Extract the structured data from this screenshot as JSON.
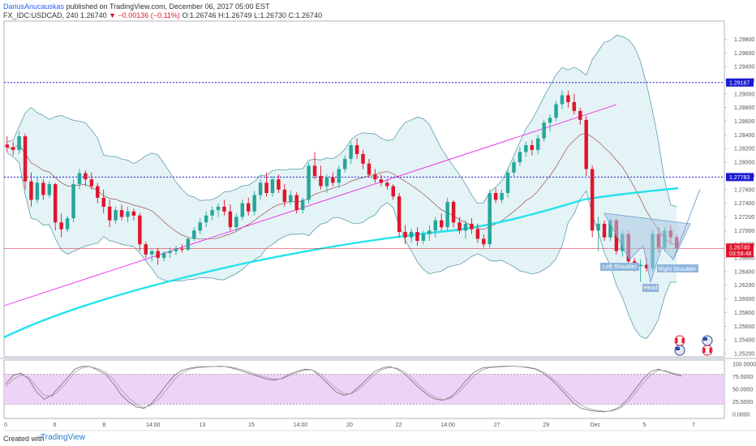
{
  "header": {
    "author": "DariusAnucauskas",
    "published": "published on TradingView.com, December 06, 2017 05:00 EST",
    "symbol": "FX_IDC:USDCAD, 240",
    "last": "1.26740",
    "change": "▼ −0.00136 (−0.11%)",
    "ohlc": "O:1.26746 H:1.26749 L:1.26730 C:1.26740"
  },
  "footer": {
    "created_with": "Created with",
    "brand": "TradingView"
  },
  "colors": {
    "bullish": "#26a69a",
    "bearish": "#e0152d",
    "bands": "#5e9dab",
    "band_fill": "#d9eef1",
    "ema": "#21e3ec",
    "trendline": "#ee22ee",
    "hline": "#1a1ad0",
    "basis": "#8b3a3a",
    "stoch_fill": "#e9c8f2",
    "pattern_fill": "#a9c7e4"
  },
  "chart_data": [
    {
      "type": "candlestick",
      "ylim": [
        1.25,
        1.3
      ],
      "y_ticks": [
        "1.29800",
        "1.29600",
        "1.29400",
        "1.29200",
        "1.29000",
        "1.28800",
        "1.28600",
        "1.28400",
        "1.28200",
        "1.28000",
        "1.27800",
        "1.27600",
        "1.27400",
        "1.27200",
        "1.27000",
        "1.26800",
        "1.26600",
        "1.26400",
        "1.26200",
        "1.26000",
        "1.25800",
        "1.25600",
        "1.25400",
        "1.25200"
      ],
      "x_ticks": [
        "0",
        "6",
        "8",
        "14:00",
        "13",
        "15",
        "14:00",
        "20",
        "22",
        "14:00",
        "27",
        "29",
        "Dec",
        "5",
        "7"
      ],
      "price_lines": [
        {
          "label": "1.29167",
          "value": 1.29167
        },
        {
          "label": "1.27783",
          "value": 1.27783
        }
      ],
      "current": {
        "label": "1.26740",
        "value": 1.2674,
        "countdown": "03:59:48"
      },
      "annotations": [
        "Left Shoulder",
        "Head",
        "Right Shoulder"
      ],
      "ohlc": [
        [
          1.2826,
          1.2838,
          1.2815,
          1.2822
        ],
        [
          1.2822,
          1.283,
          1.281,
          1.2818
        ],
        [
          1.2818,
          1.2845,
          1.2812,
          1.2838
        ],
        [
          1.2838,
          1.2842,
          1.276,
          1.2772
        ],
        [
          1.2772,
          1.2785,
          1.2735,
          1.2745
        ],
        [
          1.2745,
          1.2778,
          1.274,
          1.277
        ],
        [
          1.277,
          1.2775,
          1.2745,
          1.2752
        ],
        [
          1.2752,
          1.2772,
          1.2748,
          1.2768
        ],
        [
          1.2768,
          1.277,
          1.27,
          1.2712
        ],
        [
          1.2712,
          1.2725,
          1.269,
          1.2702
        ],
        [
          1.2702,
          1.2722,
          1.2698,
          1.2718
        ],
        [
          1.2718,
          1.2775,
          1.2712,
          1.2768
        ],
        [
          1.2768,
          1.279,
          1.276,
          1.2784
        ],
        [
          1.2784,
          1.2788,
          1.2765,
          1.2775
        ],
        [
          1.2775,
          1.2785,
          1.276,
          1.2765
        ],
        [
          1.2765,
          1.277,
          1.274,
          1.2748
        ],
        [
          1.2748,
          1.276,
          1.2725,
          1.2735
        ],
        [
          1.2735,
          1.2745,
          1.2705,
          1.2715
        ],
        [
          1.2715,
          1.2735,
          1.271,
          1.273
        ],
        [
          1.273,
          1.2738,
          1.2715,
          1.272
        ],
        [
          1.272,
          1.2735,
          1.2712,
          1.2728
        ],
        [
          1.2728,
          1.2732,
          1.2715,
          1.2722
        ],
        [
          1.2722,
          1.2726,
          1.267,
          1.268
        ],
        [
          1.268,
          1.2684,
          1.266,
          1.2665
        ],
        [
          1.2665,
          1.2673,
          1.2655,
          1.267
        ],
        [
          1.267,
          1.2675,
          1.265,
          1.266
        ],
        [
          1.266,
          1.267,
          1.2655,
          1.2667
        ],
        [
          1.2667,
          1.2675,
          1.266,
          1.267
        ],
        [
          1.267,
          1.2678,
          1.2664,
          1.2673
        ],
        [
          1.2673,
          1.268,
          1.2668,
          1.2672
        ],
        [
          1.2672,
          1.269,
          1.267,
          1.2688
        ],
        [
          1.2688,
          1.2705,
          1.2685,
          1.27
        ],
        [
          1.27,
          1.2718,
          1.2695,
          1.2712
        ],
        [
          1.2712,
          1.2728,
          1.2705,
          1.2722
        ],
        [
          1.2722,
          1.2735,
          1.2715,
          1.273
        ],
        [
          1.273,
          1.274,
          1.272,
          1.2735
        ],
        [
          1.2735,
          1.2745,
          1.2722,
          1.2728
        ],
        [
          1.2728,
          1.2738,
          1.27,
          1.2705
        ],
        [
          1.2705,
          1.2725,
          1.27,
          1.272
        ],
        [
          1.272,
          1.2745,
          1.2715,
          1.274
        ],
        [
          1.274,
          1.2748,
          1.2722,
          1.2728
        ],
        [
          1.2728,
          1.2758,
          1.2722,
          1.2752
        ],
        [
          1.2752,
          1.2775,
          1.2745,
          1.277
        ],
        [
          1.277,
          1.2785,
          1.275,
          1.2755
        ],
        [
          1.2755,
          1.278,
          1.275,
          1.2775
        ],
        [
          1.2775,
          1.2782,
          1.2755,
          1.276
        ],
        [
          1.276,
          1.2768,
          1.2735,
          1.2742
        ],
        [
          1.2742,
          1.2758,
          1.2738,
          1.2752
        ],
        [
          1.2752,
          1.2756,
          1.2725,
          1.273
        ],
        [
          1.273,
          1.2748,
          1.2725,
          1.2745
        ],
        [
          1.2745,
          1.28,
          1.274,
          1.2795
        ],
        [
          1.2795,
          1.2815,
          1.2775,
          1.278
        ],
        [
          1.278,
          1.2795,
          1.276,
          1.2765
        ],
        [
          1.2765,
          1.2782,
          1.2755,
          1.2778
        ],
        [
          1.2778,
          1.2785,
          1.2765,
          1.277
        ],
        [
          1.277,
          1.2795,
          1.2762,
          1.279
        ],
        [
          1.279,
          1.281,
          1.2785,
          1.2805
        ],
        [
          1.2805,
          1.283,
          1.2798,
          1.2825
        ],
        [
          1.2825,
          1.2835,
          1.2805,
          1.2812
        ],
        [
          1.2812,
          1.2818,
          1.279,
          1.2798
        ],
        [
          1.2798,
          1.2805,
          1.2778,
          1.2782
        ],
        [
          1.2782,
          1.279,
          1.277,
          1.2775
        ],
        [
          1.2775,
          1.2782,
          1.2765,
          1.277
        ],
        [
          1.277,
          1.2775,
          1.276,
          1.2765
        ],
        [
          1.2765,
          1.2768,
          1.2745,
          1.275
        ],
        [
          1.275,
          1.2755,
          1.269,
          1.2698
        ],
        [
          1.2698,
          1.2708,
          1.268,
          1.269
        ],
        [
          1.269,
          1.2703,
          1.2682,
          1.2698
        ],
        [
          1.2698,
          1.2705,
          1.2678,
          1.2685
        ],
        [
          1.2685,
          1.27,
          1.268,
          1.2695
        ],
        [
          1.2695,
          1.2708,
          1.2685,
          1.27
        ],
        [
          1.27,
          1.272,
          1.269,
          1.2715
        ],
        [
          1.2715,
          1.2725,
          1.27,
          1.2705
        ],
        [
          1.2705,
          1.2748,
          1.27,
          1.2742
        ],
        [
          1.2742,
          1.2745,
          1.2705,
          1.2712
        ],
        [
          1.2712,
          1.272,
          1.2695,
          1.27
        ],
        [
          1.27,
          1.2715,
          1.2688,
          1.271
        ],
        [
          1.271,
          1.2718,
          1.2695,
          1.2702
        ],
        [
          1.2702,
          1.271,
          1.2682,
          1.2688
        ],
        [
          1.2688,
          1.2695,
          1.2675,
          1.268
        ],
        [
          1.268,
          1.276,
          1.2675,
          1.2755
        ],
        [
          1.2755,
          1.2762,
          1.274,
          1.2745
        ],
        [
          1.2745,
          1.276,
          1.274,
          1.2755
        ],
        [
          1.2755,
          1.279,
          1.2748,
          1.2785
        ],
        [
          1.2785,
          1.2805,
          1.2778,
          1.28
        ],
        [
          1.28,
          1.2822,
          1.2795,
          1.2815
        ],
        [
          1.2815,
          1.283,
          1.2808,
          1.2825
        ],
        [
          1.2825,
          1.2832,
          1.281,
          1.2818
        ],
        [
          1.2818,
          1.284,
          1.2812,
          1.2835
        ],
        [
          1.2835,
          1.2862,
          1.283,
          1.2858
        ],
        [
          1.2858,
          1.287,
          1.2845,
          1.2865
        ],
        [
          1.2865,
          1.289,
          1.286,
          1.2885
        ],
        [
          1.2885,
          1.2905,
          1.2878,
          1.2898
        ],
        [
          1.2898,
          1.2905,
          1.288,
          1.2888
        ],
        [
          1.2888,
          1.29,
          1.287,
          1.2875
        ],
        [
          1.2875,
          1.288,
          1.2855,
          1.2862
        ],
        [
          1.2862,
          1.2868,
          1.278,
          1.279
        ],
        [
          1.279,
          1.2795,
          1.269,
          1.27
        ],
        [
          1.27,
          1.272,
          1.267,
          1.271
        ],
        [
          1.271,
          1.2715,
          1.2685,
          1.269
        ],
        [
          1.269,
          1.2718,
          1.2685,
          1.2715
        ],
        [
          1.2715,
          1.2718,
          1.2665,
          1.267
        ],
        [
          1.267,
          1.27,
          1.2662,
          1.2695
        ],
        [
          1.2695,
          1.27,
          1.2648,
          1.2655
        ],
        [
          1.2655,
          1.266,
          1.264,
          1.2648
        ],
        [
          1.2648,
          1.2658,
          1.2625,
          1.265
        ],
        [
          1.265,
          1.266,
          1.264,
          1.2645
        ],
        [
          1.2645,
          1.27,
          1.264,
          1.2695
        ],
        [
          1.2695,
          1.2705,
          1.2668,
          1.2675
        ],
        [
          1.2675,
          1.2705,
          1.267,
          1.27
        ],
        [
          1.27,
          1.2708,
          1.268,
          1.269
        ],
        [
          1.269,
          1.2695,
          1.2668,
          1.2674
        ]
      ]
    },
    {
      "type": "line",
      "title": "",
      "ylim": [
        0,
        100
      ],
      "y_ticks": [
        "100.0000",
        "75.0000",
        "50.0000",
        "25.0000",
        "0.0000"
      ],
      "levels": [
        80,
        20
      ],
      "series": [
        {
          "values": [
            60,
            78,
            82,
            70,
            45,
            30,
            38,
            55,
            72,
            90,
            96,
            95,
            88,
            80,
            62,
            40,
            25,
            15,
            12,
            22,
            40,
            60,
            78,
            88,
            92,
            94,
            95,
            95,
            96,
            94,
            90,
            85,
            80,
            75,
            70,
            68,
            72,
            80,
            86,
            90,
            88,
            75,
            60,
            45,
            38,
            42,
            55,
            70,
            85,
            92,
            95,
            90,
            80,
            65,
            50,
            38,
            30,
            28,
            35,
            50,
            68,
            84,
            92,
            94,
            95,
            96,
            96,
            95,
            93,
            90,
            82,
            70,
            55,
            38,
            22,
            12,
            8,
            6,
            5,
            8,
            15,
            30,
            50,
            70,
            85,
            90,
            85,
            80,
            76
          ]
        },
        {
          "values": [
            55,
            70,
            78,
            74,
            55,
            38,
            36,
            48,
            65,
            84,
            93,
            95,
            91,
            84,
            70,
            50,
            33,
            20,
            14,
            18,
            32,
            50,
            70,
            83,
            90,
            93,
            94,
            95,
            95,
            95,
            92,
            88,
            83,
            78,
            73,
            70,
            71,
            77,
            83,
            88,
            88,
            80,
            66,
            52,
            42,
            41,
            50,
            64,
            79,
            89,
            93,
            92,
            84,
            71,
            56,
            43,
            34,
            29,
            32,
            44,
            60,
            77,
            88,
            93,
            94,
            95,
            96,
            95,
            94,
            91,
            85,
            74,
            61,
            45,
            30,
            18,
            11,
            8,
            6,
            7,
            12,
            24,
            42,
            62,
            78,
            88,
            87,
            82,
            78
          ]
        }
      ]
    }
  ]
}
